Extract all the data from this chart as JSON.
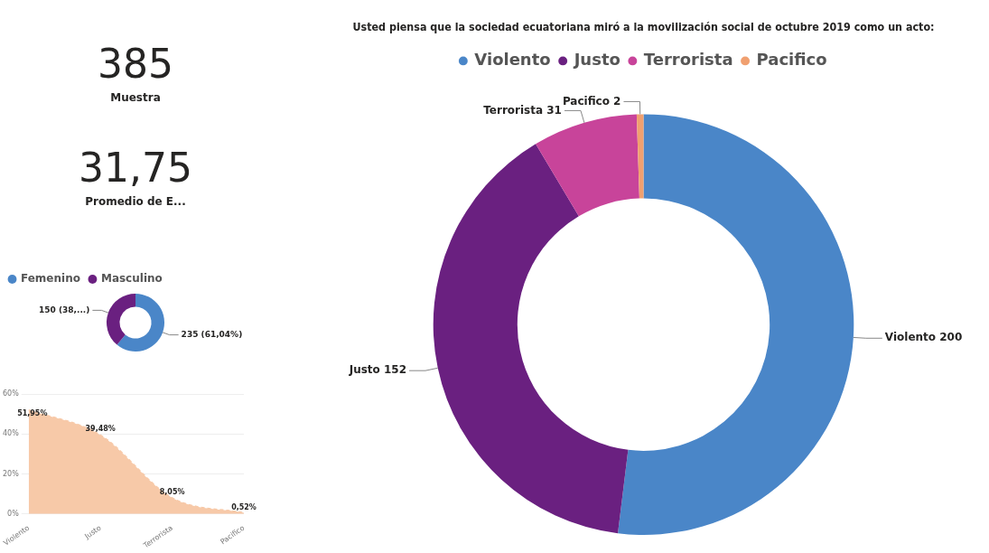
{
  "chart_data": [
    {
      "type": "other",
      "annotations": [
        "385",
        "Muestra"
      ]
    },
    {
      "type": "other",
      "annotations": [
        "31,75",
        "Promedio de E..."
      ]
    },
    {
      "type": "donut",
      "categories": [
        "Femenino",
        "Masculino"
      ],
      "values": [
        235,
        150
      ],
      "colors": [
        "#4a86c8",
        "#6a2080"
      ],
      "value_labels": [
        "235 (61,04%)",
        "150 (38,...)"
      ],
      "legend": "top left"
    },
    {
      "type": "area",
      "categories": [
        "Violento",
        "Justo",
        "Terrorista",
        "Pacifico"
      ],
      "values": [
        51.95,
        39.48,
        8.05,
        0.52
      ],
      "color": "#f7c9a8",
      "line_style": "dashed",
      "value_labels": [
        "51,95%",
        "39,48%",
        "8,05%",
        "0,52%"
      ],
      "ylim": [
        0,
        60
      ],
      "yticks": [
        {
          "value": 0,
          "label": "0%"
        },
        {
          "value": 20,
          "label": "20%"
        },
        {
          "value": 40,
          "label": "40%"
        },
        {
          "value": 60,
          "label": "60%"
        }
      ],
      "grid": "y"
    },
    {
      "type": "donut",
      "title": "Usted piensa que la sociedad ecuatoriana miró a la movilización social de octubre 2019 como un acto:",
      "categories": [
        "Violento",
        "Justo",
        "Terrorista",
        "Pacifico"
      ],
      "values": [
        200,
        152,
        31,
        2
      ],
      "colors": [
        "#4a86c8",
        "#6a2080",
        "#c8449a",
        "#f0a070"
      ],
      "value_labels": [
        "Violento 200",
        "Justo 152",
        "Terrorista 31",
        "Pacifico 2"
      ],
      "legend": "top"
    }
  ]
}
